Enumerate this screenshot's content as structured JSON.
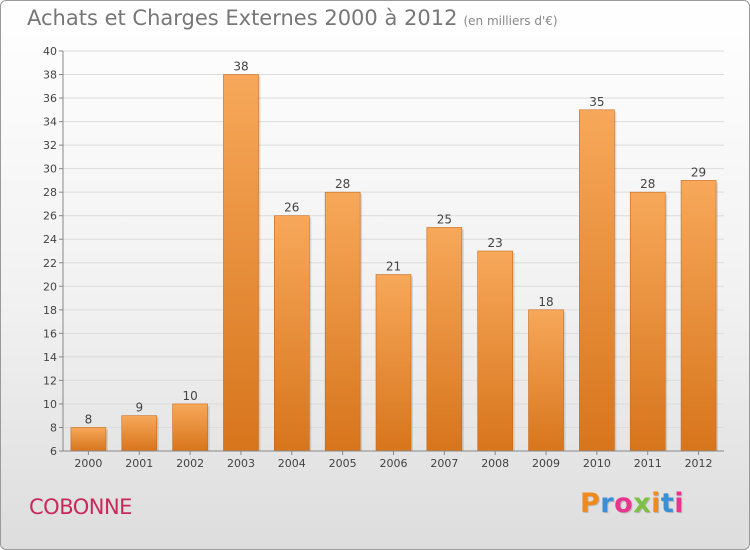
{
  "header": {
    "title": "Achats et Charges Externes 2000 à 2012",
    "unit": "(en milliers d'€)"
  },
  "footer": {
    "commune": "COBONNE",
    "logo_text": "Proxiti",
    "logo_colors": [
      "#f08a1c",
      "#3a8fd6",
      "#e8368f",
      "#7cc142",
      "#f08a1c",
      "#3a8fd6",
      "#e8368f"
    ]
  },
  "colors": {
    "bar_top": "#f7a85a",
    "bar_bottom": "#d7751c",
    "grid": "#dcdcdc",
    "axis_text": "#444444"
  },
  "chart_data": {
    "type": "bar",
    "categories": [
      "2000",
      "2001",
      "2002",
      "2003",
      "2004",
      "2005",
      "2006",
      "2007",
      "2008",
      "2009",
      "2010",
      "2011",
      "2012"
    ],
    "values": [
      8,
      9,
      10,
      38,
      26,
      28,
      21,
      25,
      23,
      18,
      35,
      28,
      29
    ],
    "title": "Achats et Charges Externes 2000 à 2012",
    "subtitle": "(en milliers d'€)",
    "xlabel": "",
    "ylabel": "",
    "ylim": [
      6,
      40
    ],
    "yticks": [
      6,
      8,
      10,
      12,
      14,
      16,
      18,
      20,
      22,
      24,
      26,
      28,
      30,
      32,
      34,
      36,
      38,
      40
    ],
    "grid": true,
    "data_labels": true
  }
}
